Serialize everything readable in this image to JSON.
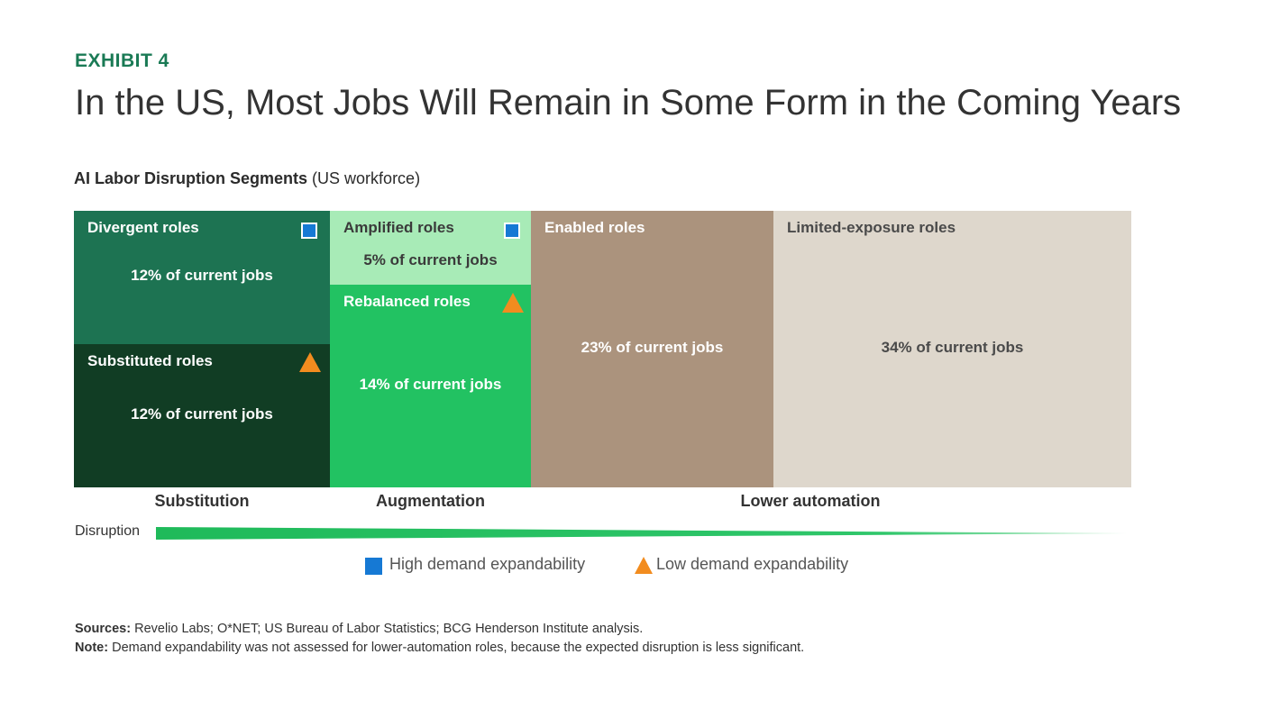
{
  "exhibit": "EXHIBIT 4",
  "title": "In the US, Most Jobs Will Remain in Some Form in the Coming Years",
  "subtitle_bold": "AI Labor Disruption Segments",
  "subtitle_paren": "(US workforce)",
  "colors": {
    "accent": "#1a7a55",
    "divergent": "#1d7352",
    "substituted": "#113d24",
    "amplified": "#a8ebb7",
    "rebalanced": "#22c262",
    "enabled": "#ab937d",
    "limited": "#ded7cc",
    "high_marker": "#1679d4",
    "low_marker": "#f28c1f"
  },
  "chart_data": {
    "type": "treemap",
    "unit": "% of current jobs",
    "groups": [
      {
        "name": "Substitution",
        "segments": [
          {
            "name": "Divergent roles",
            "value": 12,
            "label": "12% of current jobs",
            "marker": "high"
          },
          {
            "name": "Substituted roles",
            "value": 12,
            "label": "12% of current jobs",
            "marker": "low"
          }
        ]
      },
      {
        "name": "Augmentation",
        "segments": [
          {
            "name": "Amplified roles",
            "value": 5,
            "label": "5% of current jobs",
            "marker": "high"
          },
          {
            "name": "Rebalanced roles",
            "value": 14,
            "label": "14% of current jobs",
            "marker": "low"
          }
        ]
      },
      {
        "name": "Lower automation",
        "segments": [
          {
            "name": "Enabled roles",
            "value": 23,
            "label": "23% of current jobs",
            "marker": "none"
          },
          {
            "name": "Limited-exposure roles",
            "value": 34,
            "label": "34% of current jobs",
            "marker": "none"
          }
        ]
      }
    ],
    "disruption_axis_label": "Disruption",
    "legend": [
      {
        "marker": "high",
        "label": "High demand expandability"
      },
      {
        "marker": "low",
        "label": "Low demand expandability"
      }
    ]
  },
  "sources_label": "Sources:",
  "sources_text": "Revelio Labs; O*NET; US Bureau of Labor Statistics; BCG Henderson Institute analysis.",
  "note_label": "Note:",
  "note_text": "Demand expandability was not assessed for lower-automation roles, because the expected disruption is less significant."
}
